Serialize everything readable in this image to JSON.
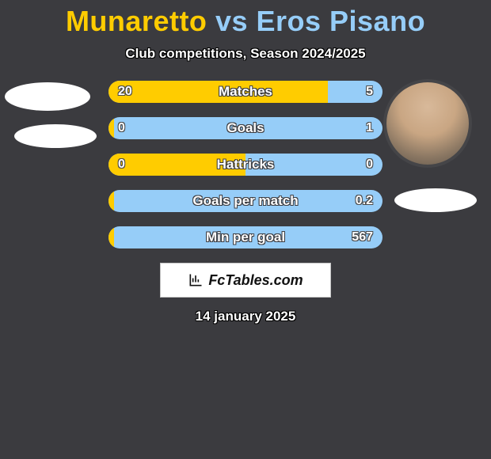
{
  "title": {
    "p1": "Munaretto",
    "vs": " vs ",
    "p2": "Eros Pisano"
  },
  "subtitle": "Club competitions, Season 2024/2025",
  "date": "14 january 2025",
  "badge": "FcTables.com",
  "colors": {
    "p1": "#ffcc00",
    "p2": "#96cdf8",
    "bg": "#3b3b3f"
  },
  "stats": [
    {
      "label": "Matches",
      "l": "20",
      "r": "5",
      "l_num": 20,
      "r_num": 5
    },
    {
      "label": "Goals",
      "l": "0",
      "r": "1",
      "l_num": 0,
      "r_num": 1
    },
    {
      "label": "Hattricks",
      "l": "0",
      "r": "0",
      "l_num": 0,
      "r_num": 0
    },
    {
      "label": "Goals per match",
      "l": "",
      "r": "0.2",
      "l_num": 0,
      "r_num": 0.2
    },
    {
      "label": "Min per goal",
      "l": "",
      "r": "567",
      "l_num": 0,
      "r_num": 567
    }
  ]
}
